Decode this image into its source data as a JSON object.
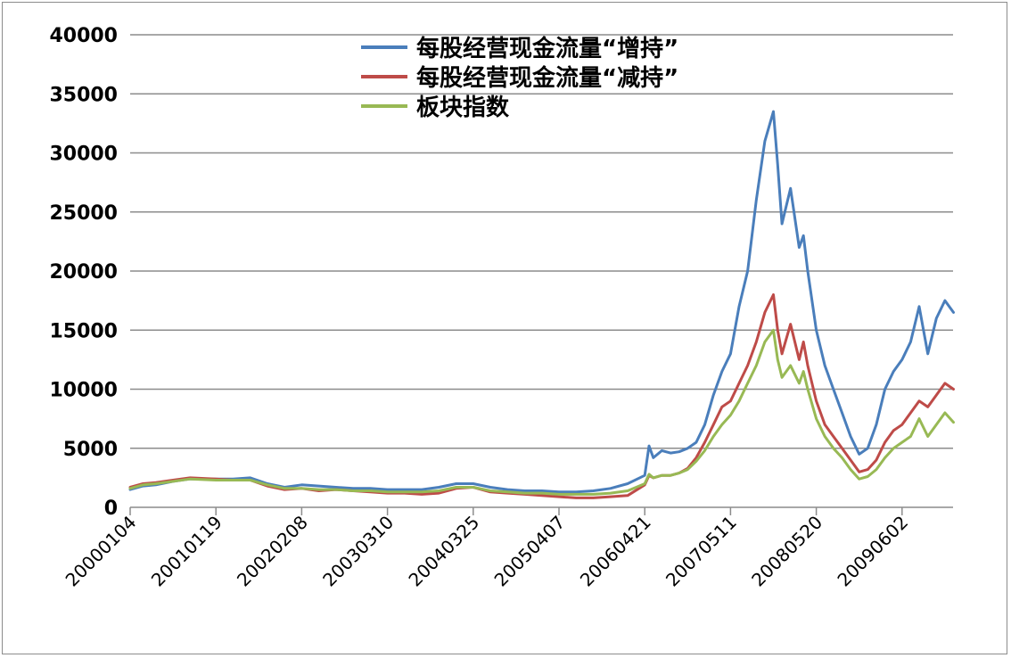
{
  "chart_data": {
    "type": "line",
    "title": "",
    "xlabel": "",
    "ylabel": "",
    "ylim": [
      0,
      40000
    ],
    "yticks": [
      0,
      5000,
      10000,
      15000,
      20000,
      25000,
      30000,
      35000,
      40000
    ],
    "x_categories": [
      "20000104",
      "20010119",
      "20020208",
      "20030310",
      "20040325",
      "20050407",
      "20060421",
      "20070511",
      "20080520",
      "20090602"
    ],
    "grid": "horizontal",
    "legend_position": "top-center",
    "series": [
      {
        "name": "每股经营现金流量“增持”",
        "color": "#4a7ebb",
        "x": [
          0,
          0.15,
          0.3,
          0.5,
          0.7,
          1.0,
          1.2,
          1.4,
          1.6,
          1.8,
          2.0,
          2.2,
          2.4,
          2.6,
          2.8,
          3.0,
          3.2,
          3.4,
          3.6,
          3.8,
          4.0,
          4.2,
          4.4,
          4.6,
          4.8,
          5.0,
          5.2,
          5.4,
          5.6,
          5.8,
          6.0,
          6.05,
          6.1,
          6.2,
          6.3,
          6.4,
          6.5,
          6.6,
          6.7,
          6.8,
          6.9,
          7.0,
          7.1,
          7.2,
          7.3,
          7.4,
          7.5,
          7.55,
          7.6,
          7.7,
          7.8,
          7.85,
          7.9,
          8.0,
          8.1,
          8.2,
          8.3,
          8.4,
          8.5,
          8.6,
          8.7,
          8.8,
          8.9,
          9.0,
          9.1,
          9.2,
          9.3,
          9.4,
          9.5,
          9.6
        ],
        "values": [
          1500,
          1800,
          1900,
          2200,
          2400,
          2400,
          2400,
          2500,
          2000,
          1700,
          1900,
          1800,
          1700,
          1600,
          1600,
          1500,
          1500,
          1500,
          1700,
          2000,
          2000,
          1700,
          1500,
          1400,
          1400,
          1300,
          1300,
          1400,
          1600,
          2000,
          2700,
          5200,
          4200,
          4800,
          4600,
          4700,
          5000,
          5500,
          7000,
          9500,
          11500,
          13000,
          17000,
          20000,
          26000,
          31000,
          33500,
          29000,
          24000,
          27000,
          22000,
          23000,
          20000,
          15000,
          12000,
          10000,
          8000,
          6000,
          4500,
          5000,
          7000,
          10000,
          11500,
          12500,
          14000,
          17000,
          13000,
          16000,
          17500,
          16500
        ]
      },
      {
        "name": "每股经营现金流量“减持”",
        "color": "#be4b48",
        "x": [
          0,
          0.15,
          0.3,
          0.5,
          0.7,
          1.0,
          1.2,
          1.4,
          1.6,
          1.8,
          2.0,
          2.2,
          2.4,
          2.6,
          2.8,
          3.0,
          3.2,
          3.4,
          3.6,
          3.8,
          4.0,
          4.2,
          4.4,
          4.6,
          4.8,
          5.0,
          5.2,
          5.4,
          5.6,
          5.8,
          6.0,
          6.05,
          6.1,
          6.2,
          6.3,
          6.4,
          6.5,
          6.6,
          6.7,
          6.8,
          6.9,
          7.0,
          7.1,
          7.2,
          7.3,
          7.4,
          7.5,
          7.55,
          7.6,
          7.7,
          7.8,
          7.85,
          7.9,
          8.0,
          8.1,
          8.2,
          8.3,
          8.4,
          8.5,
          8.6,
          8.7,
          8.8,
          8.9,
          9.0,
          9.1,
          9.2,
          9.3,
          9.4,
          9.5,
          9.6
        ],
        "values": [
          1700,
          2000,
          2100,
          2300,
          2500,
          2400,
          2300,
          2300,
          1800,
          1500,
          1600,
          1400,
          1500,
          1400,
          1300,
          1200,
          1200,
          1100,
          1200,
          1600,
          1700,
          1300,
          1200,
          1100,
          1000,
          900,
          800,
          800,
          900,
          1000,
          1900,
          2700,
          2500,
          2700,
          2700,
          2900,
          3300,
          4200,
          5500,
          7000,
          8500,
          9000,
          10500,
          12000,
          14000,
          16500,
          18000,
          15000,
          13000,
          15500,
          12500,
          14000,
          12000,
          9000,
          7000,
          6000,
          5000,
          4000,
          3000,
          3200,
          4000,
          5500,
          6500,
          7000,
          8000,
          9000,
          8500,
          9500,
          10500,
          10000
        ]
      },
      {
        "name": "板块指数",
        "color": "#98b954",
        "x": [
          0,
          0.15,
          0.3,
          0.5,
          0.7,
          1.0,
          1.2,
          1.4,
          1.6,
          1.8,
          2.0,
          2.2,
          2.4,
          2.6,
          2.8,
          3.0,
          3.2,
          3.4,
          3.6,
          3.8,
          4.0,
          4.2,
          4.4,
          4.6,
          4.8,
          5.0,
          5.2,
          5.4,
          5.6,
          5.8,
          6.0,
          6.05,
          6.1,
          6.2,
          6.3,
          6.4,
          6.5,
          6.6,
          6.7,
          6.8,
          6.9,
          7.0,
          7.1,
          7.2,
          7.3,
          7.4,
          7.5,
          7.55,
          7.6,
          7.7,
          7.8,
          7.85,
          7.9,
          8.0,
          8.1,
          8.2,
          8.3,
          8.4,
          8.5,
          8.6,
          8.7,
          8.8,
          8.9,
          9.0,
          9.1,
          9.2,
          9.3,
          9.4,
          9.5,
          9.6
        ],
        "values": [
          1600,
          1900,
          2000,
          2200,
          2400,
          2300,
          2300,
          2300,
          1900,
          1600,
          1600,
          1500,
          1500,
          1400,
          1400,
          1300,
          1300,
          1300,
          1400,
          1700,
          1700,
          1400,
          1300,
          1200,
          1200,
          1100,
          1100,
          1100,
          1200,
          1400,
          2000,
          2800,
          2500,
          2700,
          2700,
          2900,
          3200,
          3900,
          4800,
          6000,
          7000,
          7800,
          9000,
          10500,
          12000,
          14000,
          15000,
          12500,
          11000,
          12000,
          10500,
          11500,
          10000,
          7500,
          6000,
          5000,
          4200,
          3200,
          2400,
          2600,
          3200,
          4200,
          5000,
          5500,
          6000,
          7500,
          6000,
          7000,
          8000,
          7200
        ]
      }
    ]
  }
}
